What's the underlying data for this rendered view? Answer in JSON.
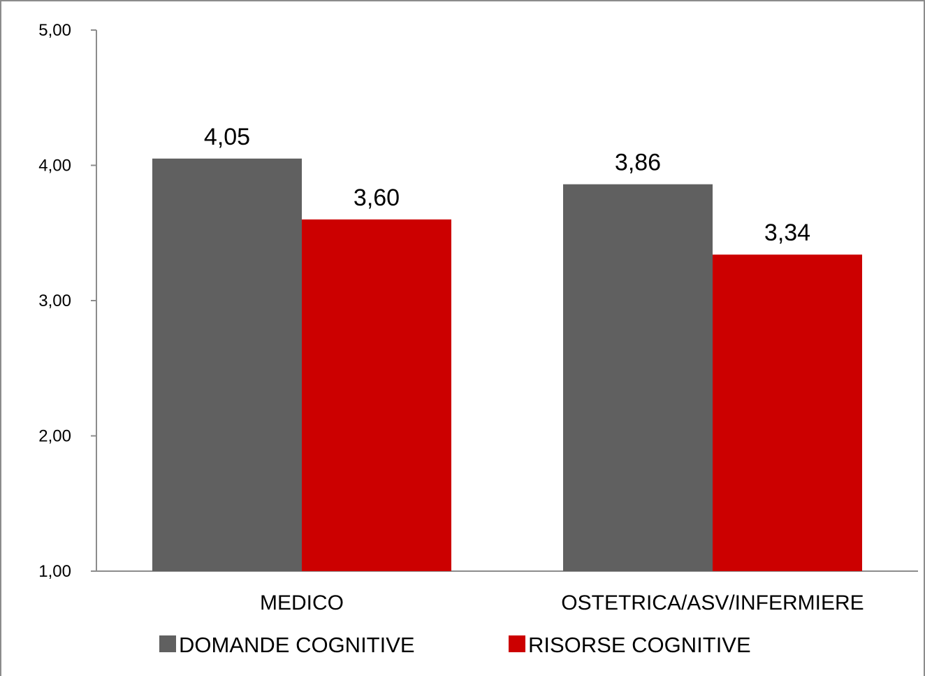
{
  "chart_data": {
    "type": "bar",
    "categories": [
      "MEDICO",
      "OSTETRICA/ASV/INFERMIERE"
    ],
    "series": [
      {
        "name": "DOMANDE COGNITIVE",
        "values": [
          4.05,
          3.86
        ],
        "labels": [
          "4,05",
          "3,86"
        ],
        "color": "#606060"
      },
      {
        "name": "RISORSE COGNITIVE",
        "values": [
          3.6,
          3.34
        ],
        "labels": [
          "3,60",
          "3,34"
        ],
        "color": "#cc0000"
      }
    ],
    "yticks": [
      {
        "value": 1,
        "label": "1,00"
      },
      {
        "value": 2,
        "label": "2,00"
      },
      {
        "value": 3,
        "label": "3,00"
      },
      {
        "value": 4,
        "label": "4,00"
      },
      {
        "value": 5,
        "label": "5,00"
      }
    ],
    "ylim": [
      1,
      5
    ],
    "title": "",
    "xlabel": "",
    "ylabel": "",
    "grid": false,
    "legend_position": "bottom",
    "axis_color": "#8c8c8c"
  }
}
